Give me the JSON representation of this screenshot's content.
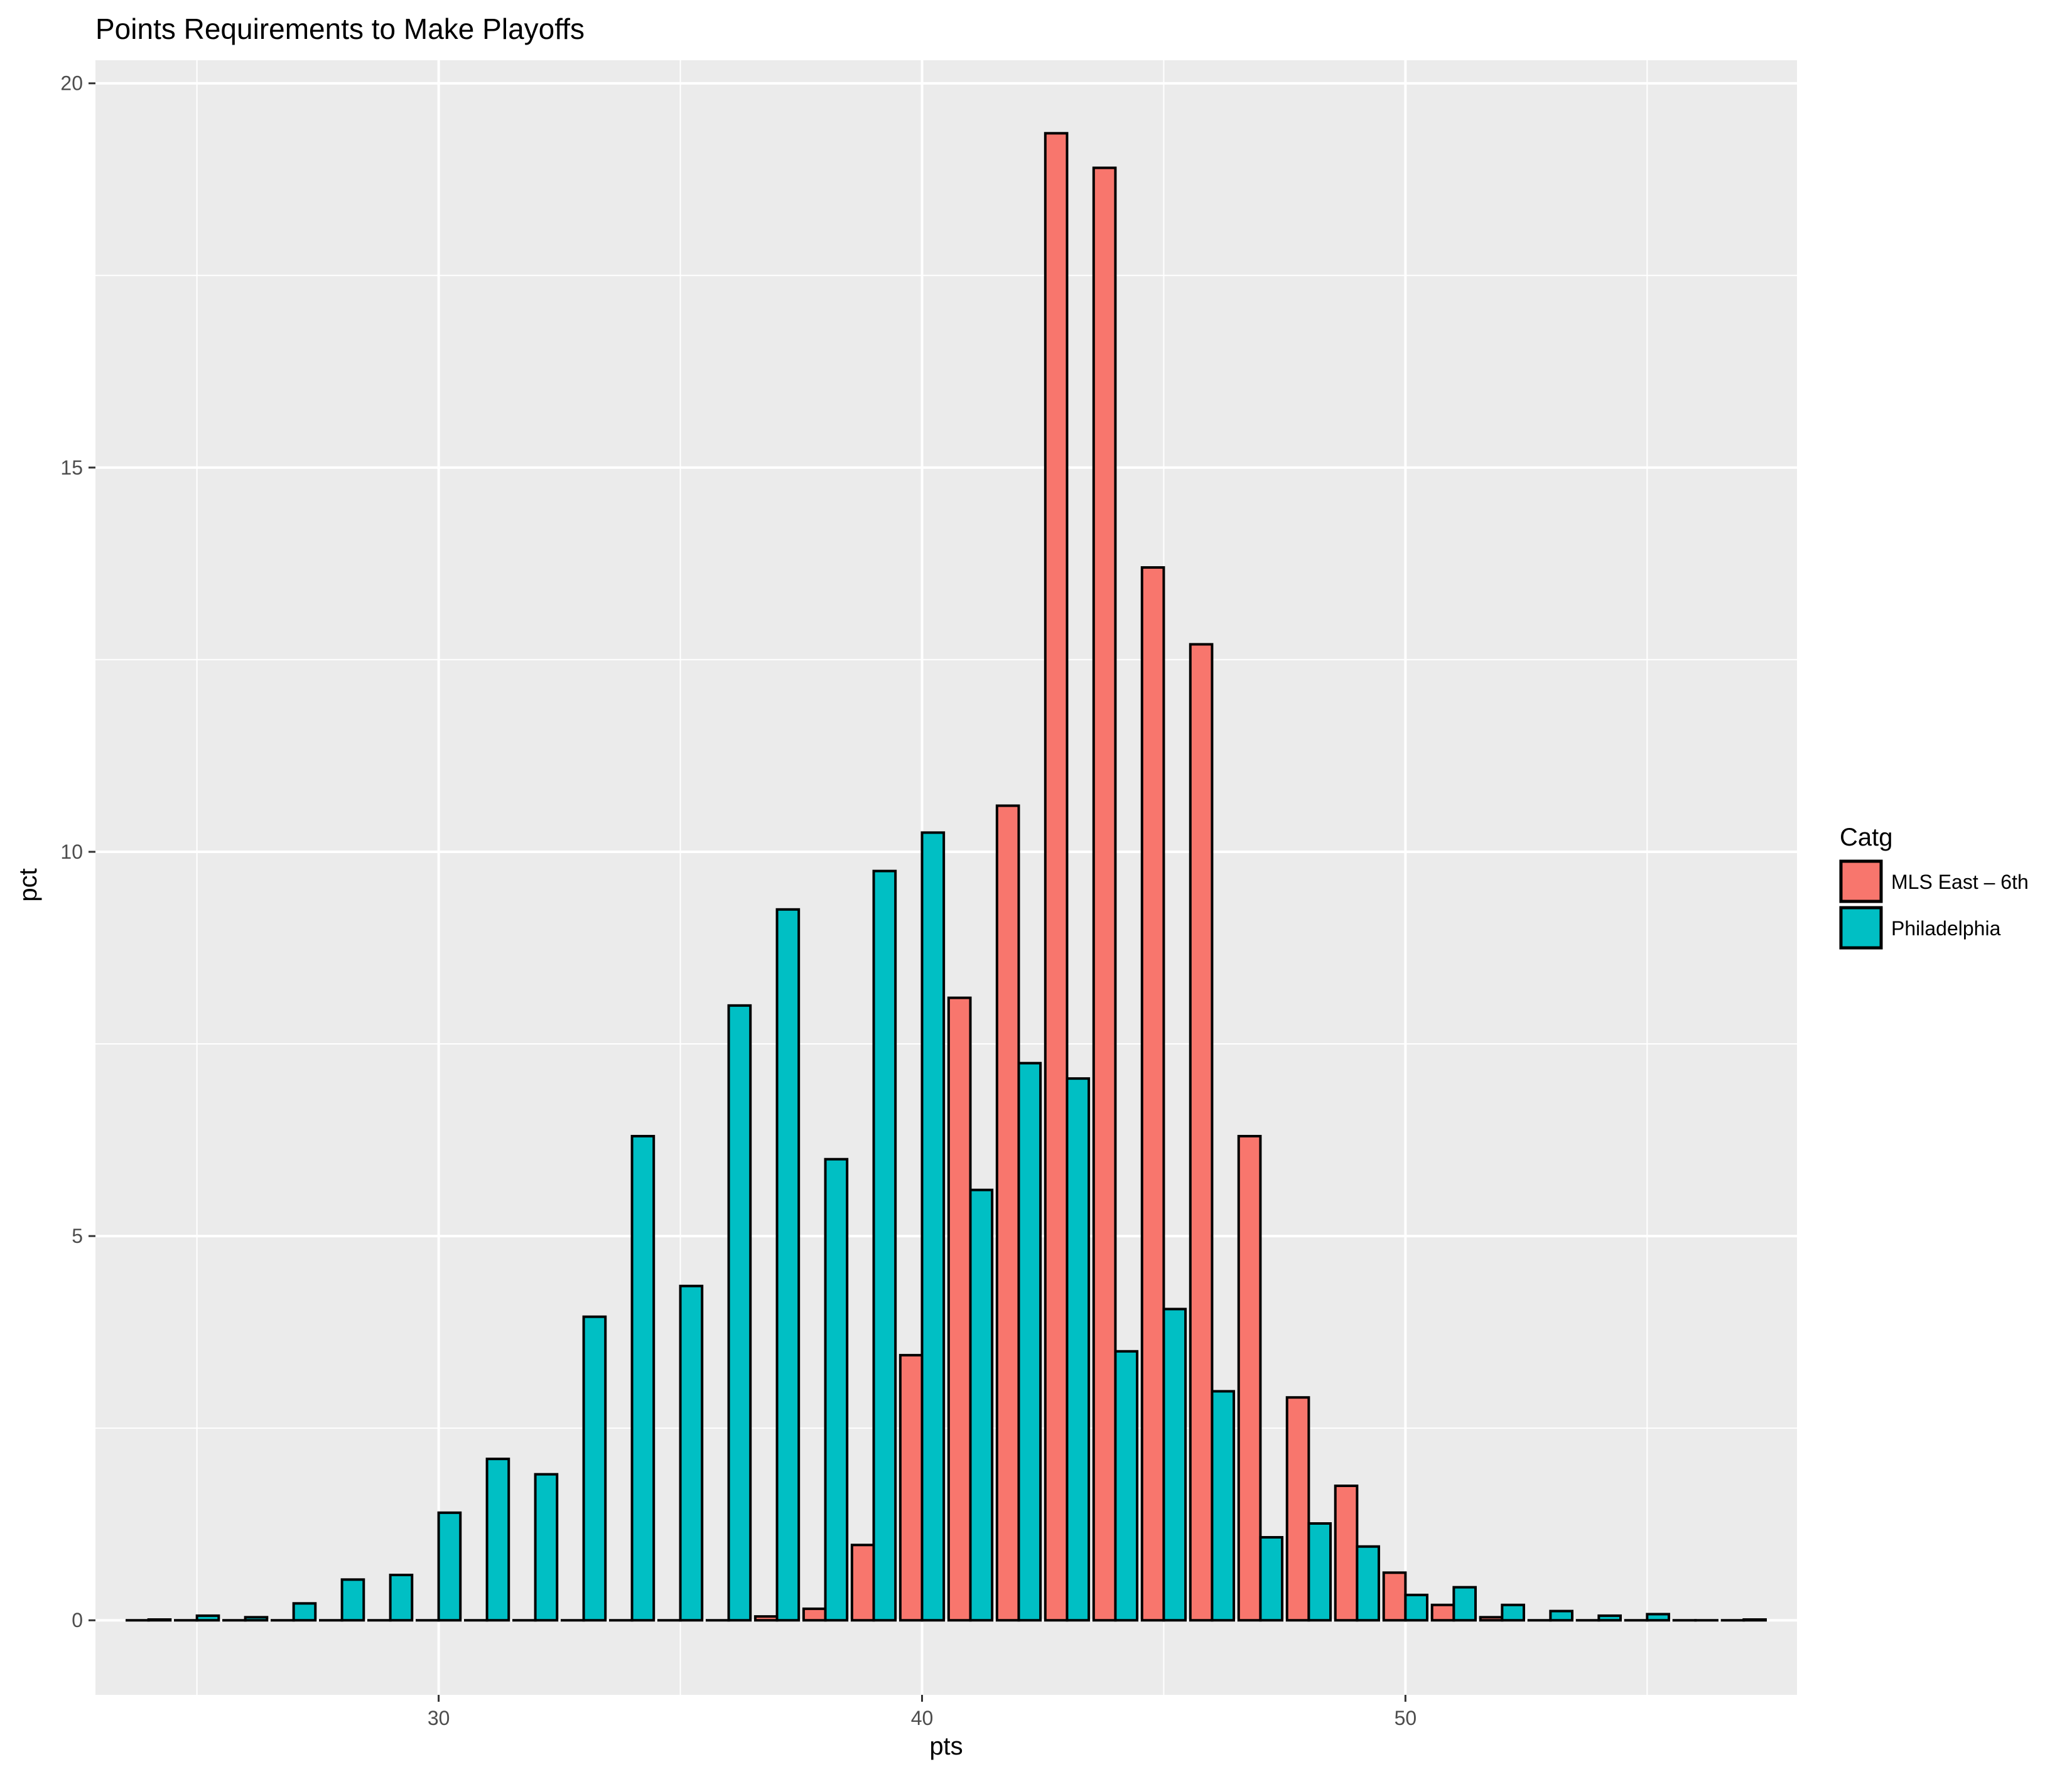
{
  "chart_data": {
    "type": "bar",
    "title": "Points Requirements to Make Playoffs",
    "xlabel": "pts",
    "ylabel": "pct",
    "xlim": [
      22.9,
      58.1
    ],
    "ylim": [
      -0.97,
      20.3
    ],
    "x_ticks": [
      30,
      40,
      50
    ],
    "y_ticks": [
      0,
      5,
      10,
      15,
      20
    ],
    "x_minor_ticks": [
      25,
      35,
      45,
      55
    ],
    "y_minor_ticks": [
      2.5,
      7.5,
      12.5,
      17.5
    ],
    "grid": true,
    "background": "#ebebeb",
    "legend": {
      "title": "Catg",
      "position": "right"
    },
    "x": [
      24,
      25,
      26,
      27,
      28,
      29,
      30,
      31,
      32,
      33,
      34,
      35,
      36,
      37,
      38,
      39,
      40,
      41,
      42,
      43,
      44,
      45,
      46,
      47,
      48,
      49,
      50,
      51,
      52,
      53,
      54,
      55,
      56,
      57
    ],
    "series": [
      {
        "name": "MLS East – 6th",
        "color": "#F8766D",
        "values": [
          0,
          0,
          0,
          0,
          0,
          0,
          0,
          0,
          0,
          0,
          0,
          0,
          0,
          0.05,
          0.15,
          0.98,
          3.45,
          8.1,
          10.6,
          19.35,
          18.9,
          13.7,
          12.7,
          6.3,
          2.9,
          1.75,
          0.62,
          0.2,
          0.04,
          0,
          0,
          0,
          0,
          0
        ]
      },
      {
        "name": "Philadelphia",
        "color": "#00BFC4",
        "values": [
          0.01,
          0.06,
          0.04,
          0.22,
          0.53,
          0.59,
          1.4,
          2.1,
          1.9,
          3.95,
          6.3,
          4.35,
          8.0,
          9.25,
          6.0,
          9.75,
          10.25,
          5.6,
          7.25,
          7.05,
          3.5,
          4.05,
          2.98,
          1.08,
          1.26,
          0.96,
          0.33,
          0.43,
          0.2,
          0.12,
          0.06,
          0.08,
          0,
          0.01
        ]
      }
    ]
  }
}
